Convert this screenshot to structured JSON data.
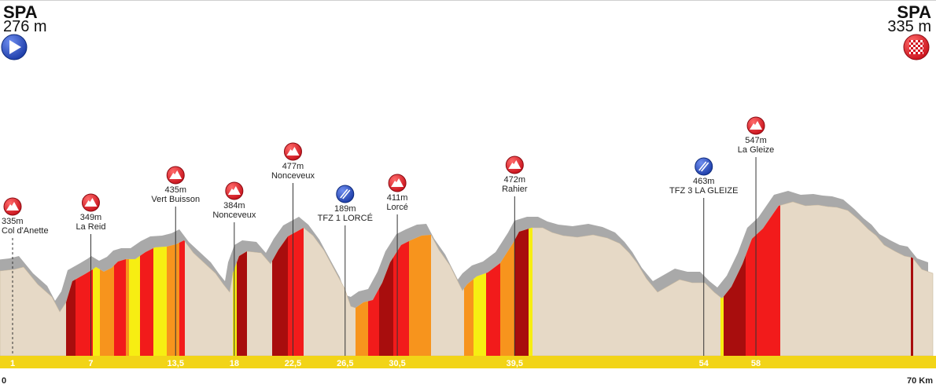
{
  "start": {
    "city": "SPA",
    "altitude": "276 m",
    "icon": "start-play-icon"
  },
  "finish": {
    "city": "SPA",
    "altitude": "335 m",
    "icon": "finish-flag-icon"
  },
  "chart_data": {
    "type": "area",
    "distance_unit": "Km",
    "xlim": [
      0,
      70
    ],
    "axis_labels": [
      {
        "km": 0,
        "label": "0"
      },
      {
        "km": 70,
        "label": "70 Km"
      }
    ],
    "km_markers": [
      {
        "km": 1,
        "label": "1"
      },
      {
        "km": 7,
        "label": "7"
      },
      {
        "km": 13.5,
        "label": "13,5"
      },
      {
        "km": 18,
        "label": "18"
      },
      {
        "km": 22.5,
        "label": "22,5"
      },
      {
        "km": 26.5,
        "label": "26,5"
      },
      {
        "km": 30.5,
        "label": "30,5"
      },
      {
        "km": 39.5,
        "label": "39,5"
      },
      {
        "km": 54,
        "label": "54"
      },
      {
        "km": 58,
        "label": "58"
      }
    ],
    "climbs": [
      {
        "km": 1,
        "altitude": "335m",
        "name": "Col d'Anette",
        "type": "climb"
      },
      {
        "km": 7,
        "altitude": "349m",
        "name": "La Reid",
        "type": "climb"
      },
      {
        "km": 13.5,
        "altitude": "435m",
        "name": "Vert Buisson",
        "type": "climb"
      },
      {
        "km": 18,
        "altitude": "384m",
        "name": "Nonceveux",
        "type": "climb"
      },
      {
        "km": 22.5,
        "altitude": "477m",
        "name": "Nonceveux",
        "type": "climb"
      },
      {
        "km": 26.5,
        "altitude": "189m",
        "name": "TFZ 1 LORCÉ",
        "type": "timezone"
      },
      {
        "km": 30.5,
        "altitude": "411m",
        "name": "Lorcé",
        "type": "climb"
      },
      {
        "km": 39.5,
        "altitude": "472m",
        "name": "Rahier",
        "type": "climb"
      },
      {
        "km": 54,
        "altitude": "463m",
        "name": "TFZ 3 LA GLEIZE",
        "type": "timezone"
      },
      {
        "km": 58,
        "altitude": "547m",
        "name": "La Gleize",
        "type": "climb"
      }
    ],
    "colors": {
      "terrain": "#e6d9c6",
      "shadow": "#a9a9a9",
      "yellow": "#f7ee12",
      "orange": "#f7941d",
      "red": "#f21b1b",
      "darkred": "#a80d0d",
      "axis_band": "#f2d417",
      "climb_icon": "#e0191f",
      "timezone_icon": "#1d3faa"
    }
  }
}
